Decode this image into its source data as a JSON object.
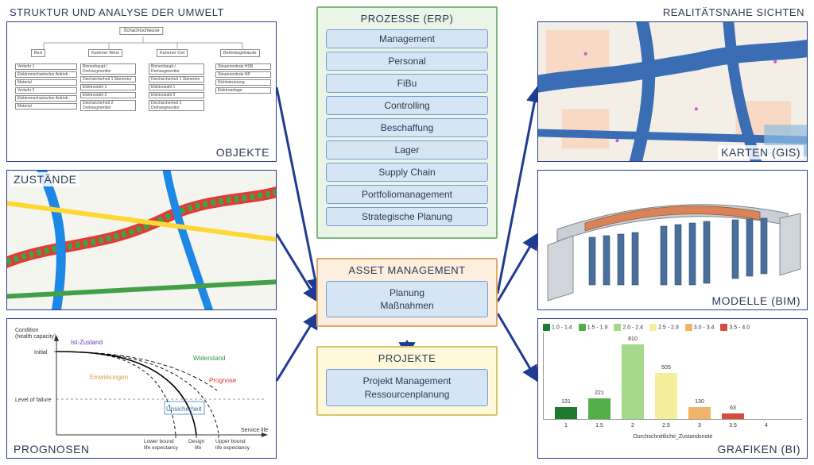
{
  "headers": {
    "left": "STRUKTUR UND ANALYSE DER UMWELT",
    "right": "REALITÄTSNAHE SICHTEN"
  },
  "left_panels": {
    "objekte": {
      "label": "OBJEKTE",
      "root": "Schachtschleuse",
      "l2": [
        "Bed",
        "Kammer West",
        "Kammer Ost",
        "Betriebsgebäude"
      ],
      "cols": [
        [
          "Verkehr 1",
          "Elektromechanischer Antrieb",
          "Material",
          "Verkehr 2",
          "Elektromechanischer Antrieb",
          "Material"
        ],
        [
          "Binnenhaupt / Drehsegmenttor",
          "Deichsicherheit 1 Stemmtor",
          "Elektrostahl 1",
          "Elektrostahl 2",
          "Deichsicherheit 2 Drehsegmenttor"
        ],
        [
          "Binnenhaupt / Drehsegmenttor",
          "Deichsicherheit 1 Stemmtor",
          "Elektrostahl 1",
          "Elektrostahl 2",
          "Deichsicherheit 2 Drehsegmenttor"
        ],
        [
          "Steuerzentrale HSB",
          "Steuerzentrale NP",
          "Nichtsteuerung",
          "Elektroanlage"
        ]
      ]
    },
    "zustaende": {
      "label": "ZUSTÄNDE"
    },
    "prognosen": {
      "label": "PROGNOSEN",
      "y_label": "Condition\n(health capacity)",
      "y_ticks": [
        "Initial",
        "Level of failure"
      ],
      "x_label": "Service life",
      "x_ticks": [
        "Lower bound\nlife expectancy",
        "Design\nlife",
        "Upper bound\nlife expectancy"
      ],
      "annotations": {
        "ist": {
          "text": "Ist-Zustand",
          "color": "#6a3fb5"
        },
        "widerstand": {
          "text": "Widerstand",
          "color": "#2e9b3f"
        },
        "einwirkungen": {
          "text": "Einwirkungen",
          "color": "#d1a437"
        },
        "prognose": {
          "text": "Prognose",
          "color": "#d23b2a"
        },
        "unsicherheit": {
          "text": "Unsicherheit",
          "color": "#2f6db5"
        }
      }
    }
  },
  "center": {
    "erp": {
      "title": "PROZESSE (ERP)",
      "items": [
        "Management",
        "Personal",
        "FiBu",
        "Controlling",
        "Beschaffung",
        "Lager",
        "Supply Chain",
        "Portfoliomanagement",
        "Strategische Planung"
      ],
      "bg": "#eaf5e7",
      "border": "#7fb77e"
    },
    "asset": {
      "title": "ASSET MANAGEMENT",
      "sub": "Planung\nMaßnahmen",
      "bg": "#fdeedd",
      "border": "#e0a96d"
    },
    "projekte": {
      "title": "PROJEKTE",
      "sub": "Projekt Management\nRessourcenplanung",
      "bg": "#fff8d9",
      "border": "#d9c36c"
    }
  },
  "right_panels": {
    "karten": {
      "label": "KARTEN (GIS)"
    },
    "modelle": {
      "label": "MODELLE (BIM)"
    },
    "grafiken": {
      "label": "GRAFIKEN (BI)",
      "x_axis_title": "Durchschnittliche_Zustandsnote",
      "legend": [
        {
          "label": "1.0 - 1.4",
          "color": "#1e7a2e"
        },
        {
          "label": "1.5 - 1.9",
          "color": "#52b04a"
        },
        {
          "label": "2.0 - 2.4",
          "color": "#a7d98b"
        },
        {
          "label": "2.5 - 2.9",
          "color": "#f4ef9d"
        },
        {
          "label": "3.0 - 3.4",
          "color": "#f0b56a"
        },
        {
          "label": "3.5 - 4.0",
          "color": "#d94b3a"
        }
      ],
      "categories": [
        "1",
        "1.5",
        "2",
        "2.5",
        "3",
        "3.5",
        "4"
      ],
      "values": [
        131,
        221,
        810,
        505,
        130,
        63,
        0
      ],
      "bar_colors": [
        "#1e7a2e",
        "#52b04a",
        "#a7d98b",
        "#f4ef9d",
        "#f0b56a",
        "#d94b3a",
        "#cccccc"
      ],
      "ylim": [
        0,
        900
      ]
    }
  },
  "arrows": {
    "color": "#1f3a93"
  }
}
